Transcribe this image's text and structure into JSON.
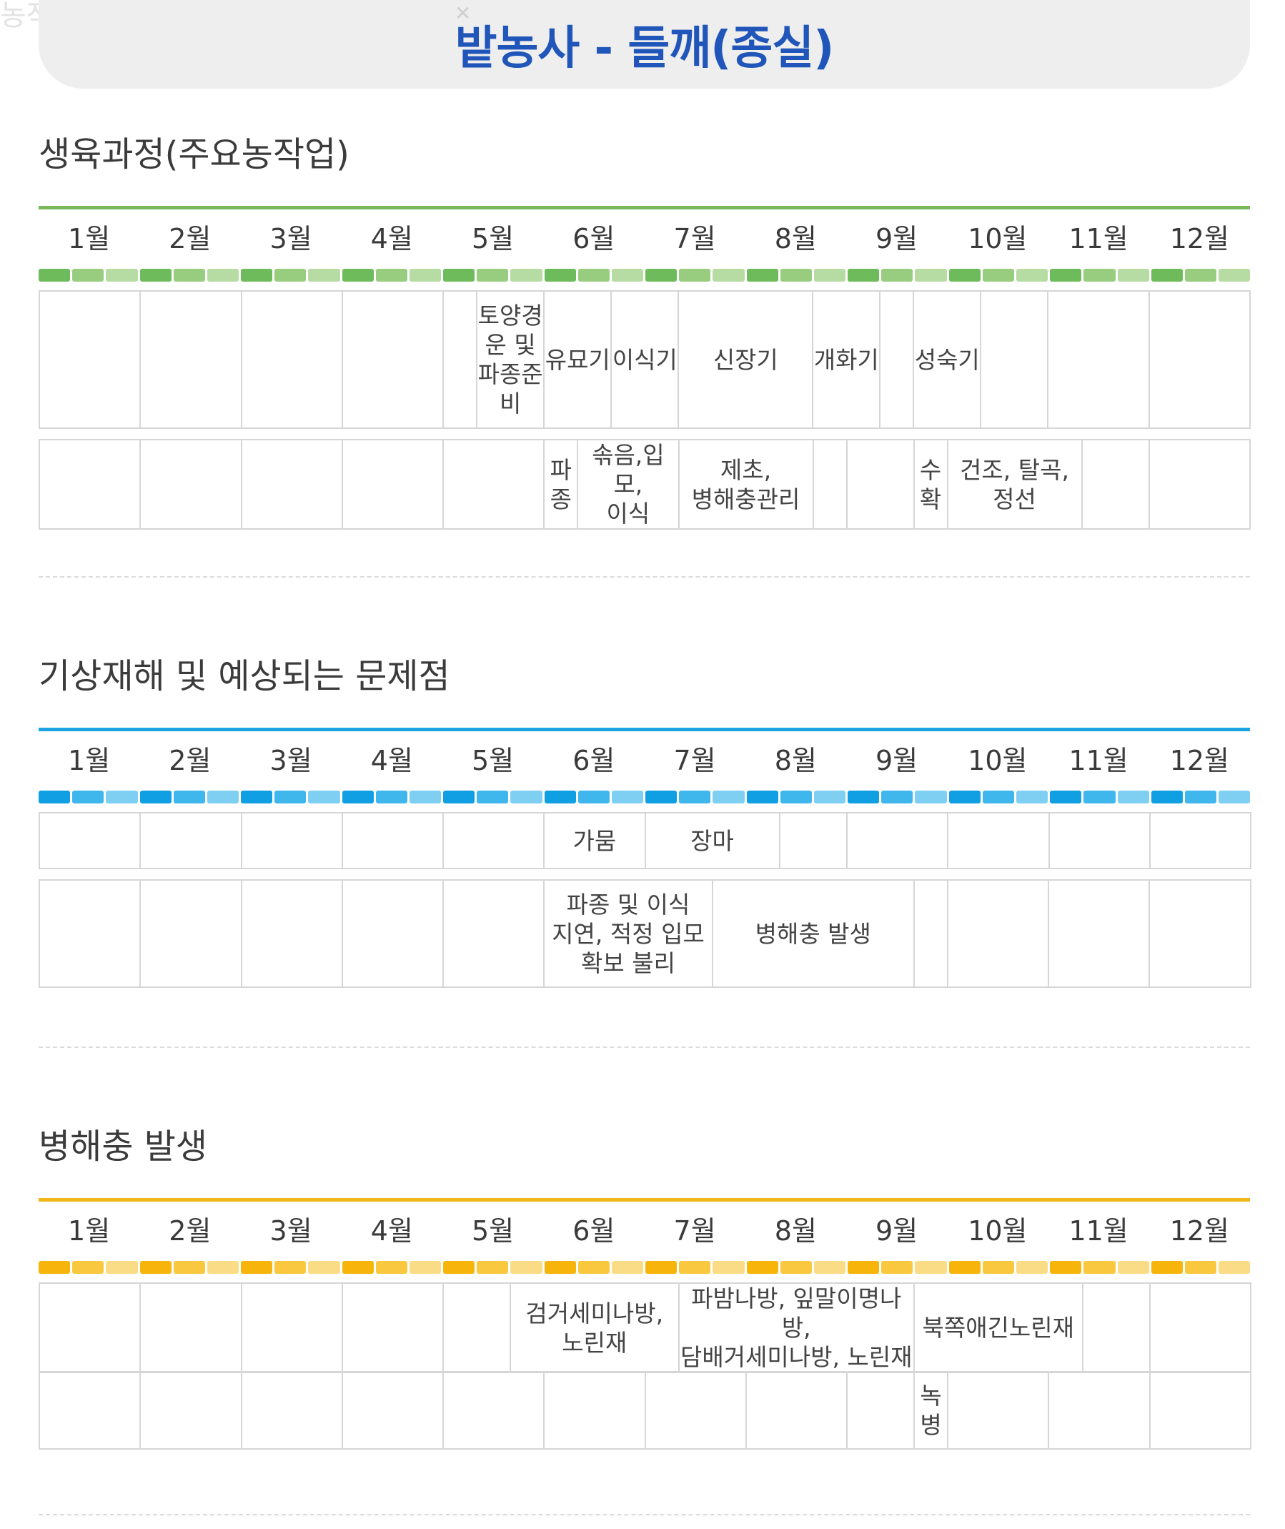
{
  "header": {
    "ghost_text": "농작업일정",
    "title": "밭농사 - 들깨(종실)"
  },
  "months": [
    "1월",
    "2월",
    "3월",
    "4월",
    "5월",
    "6월",
    "7월",
    "8월",
    "9월",
    "10월",
    "11월",
    "12월"
  ],
  "sections": {
    "growth": {
      "title": "생육과정(주요농작업)",
      "accent": "#79b85a",
      "bar_colors": [
        "#6dbb5a",
        "#98cd7f",
        "#b6dca3"
      ],
      "row1": [
        "토양경\n운 및\n파종준\n비",
        "유묘기",
        "이식기",
        "신장기",
        "개화기",
        "성숙기"
      ],
      "row2": [
        "파\n종",
        "솎음,입모,\n이식",
        "제초,\n병해충관리",
        "수\n확",
        "건조, 탈곡,\n정선"
      ]
    },
    "weather": {
      "title": "기상재해 및 예상되는 문제점",
      "accent": "#1aa3e0",
      "bar_colors": [
        "#0f9fe2",
        "#3fb6ec",
        "#7fcff3"
      ],
      "row1": [
        "가뭄",
        "장마"
      ],
      "row2": [
        "파종 및 이식\n지연, 적정 입모\n확보 불리",
        "병해충 발생"
      ]
    },
    "pests": {
      "title": "병해충 발생",
      "accent": "#f2b517",
      "bar_colors": [
        "#f7b50c",
        "#f9c83f",
        "#fbdc86"
      ],
      "row1": [
        "검거세미나방,\n노린재",
        "파밤나방, 잎말이명나방,\n담배거세미나방, 노린재",
        "북쪽애긴노린재"
      ],
      "row2": [
        "녹\n병"
      ]
    }
  }
}
